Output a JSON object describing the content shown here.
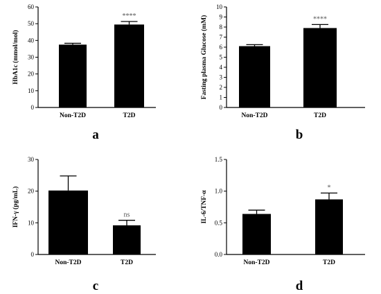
{
  "chart_data": [
    {
      "type": "bar",
      "panel": "a",
      "title": "",
      "categories": [
        "Non-T2D",
        "T2D"
      ],
      "values": [
        37.5,
        49.5
      ],
      "errors": [
        0.8,
        1.8
      ],
      "ylabel": "HbA1c (mmol/mol)",
      "xlabel": "",
      "ylim": [
        0,
        60
      ],
      "yticks": [
        0,
        10,
        20,
        30,
        40,
        50,
        60
      ],
      "significance": [
        "",
        "****"
      ],
      "bar_color": "#000000"
    },
    {
      "type": "bar",
      "panel": "b",
      "title": "",
      "categories": [
        "Non-T2D",
        "T2D"
      ],
      "values": [
        6.1,
        7.9
      ],
      "errors": [
        0.15,
        0.35
      ],
      "ylabel": "Fasting plasma Glucose (mM)",
      "xlabel": "",
      "ylim": [
        0,
        10
      ],
      "yticks": [
        0,
        1,
        2,
        3,
        4,
        5,
        6,
        7,
        8,
        9,
        10
      ],
      "significance": [
        "",
        "****"
      ],
      "bar_color": "#000000"
    },
    {
      "type": "bar",
      "panel": "c",
      "title": "",
      "categories": [
        "Non-T2D",
        "T2D"
      ],
      "values": [
        20.2,
        9.2
      ],
      "errors": [
        4.6,
        1.6
      ],
      "ylabel": "IFN-γ (pg/mL)",
      "xlabel": "",
      "ylim": [
        0,
        30
      ],
      "yticks": [
        0,
        10,
        20,
        30
      ],
      "significance": [
        "",
        "ns"
      ],
      "bar_color": "#000000"
    },
    {
      "type": "bar",
      "panel": "d",
      "title": "",
      "categories": [
        "Non-T2D",
        "T2D"
      ],
      "values": [
        0.64,
        0.87
      ],
      "errors": [
        0.06,
        0.1
      ],
      "ylabel": "IL-6/TNF-α",
      "xlabel": "",
      "ylim": [
        0,
        1.5
      ],
      "yticks": [
        "0.0",
        "0.5",
        "1.0",
        "1.5"
      ],
      "significance": [
        "",
        "*"
      ],
      "bar_color": "#000000"
    }
  ]
}
